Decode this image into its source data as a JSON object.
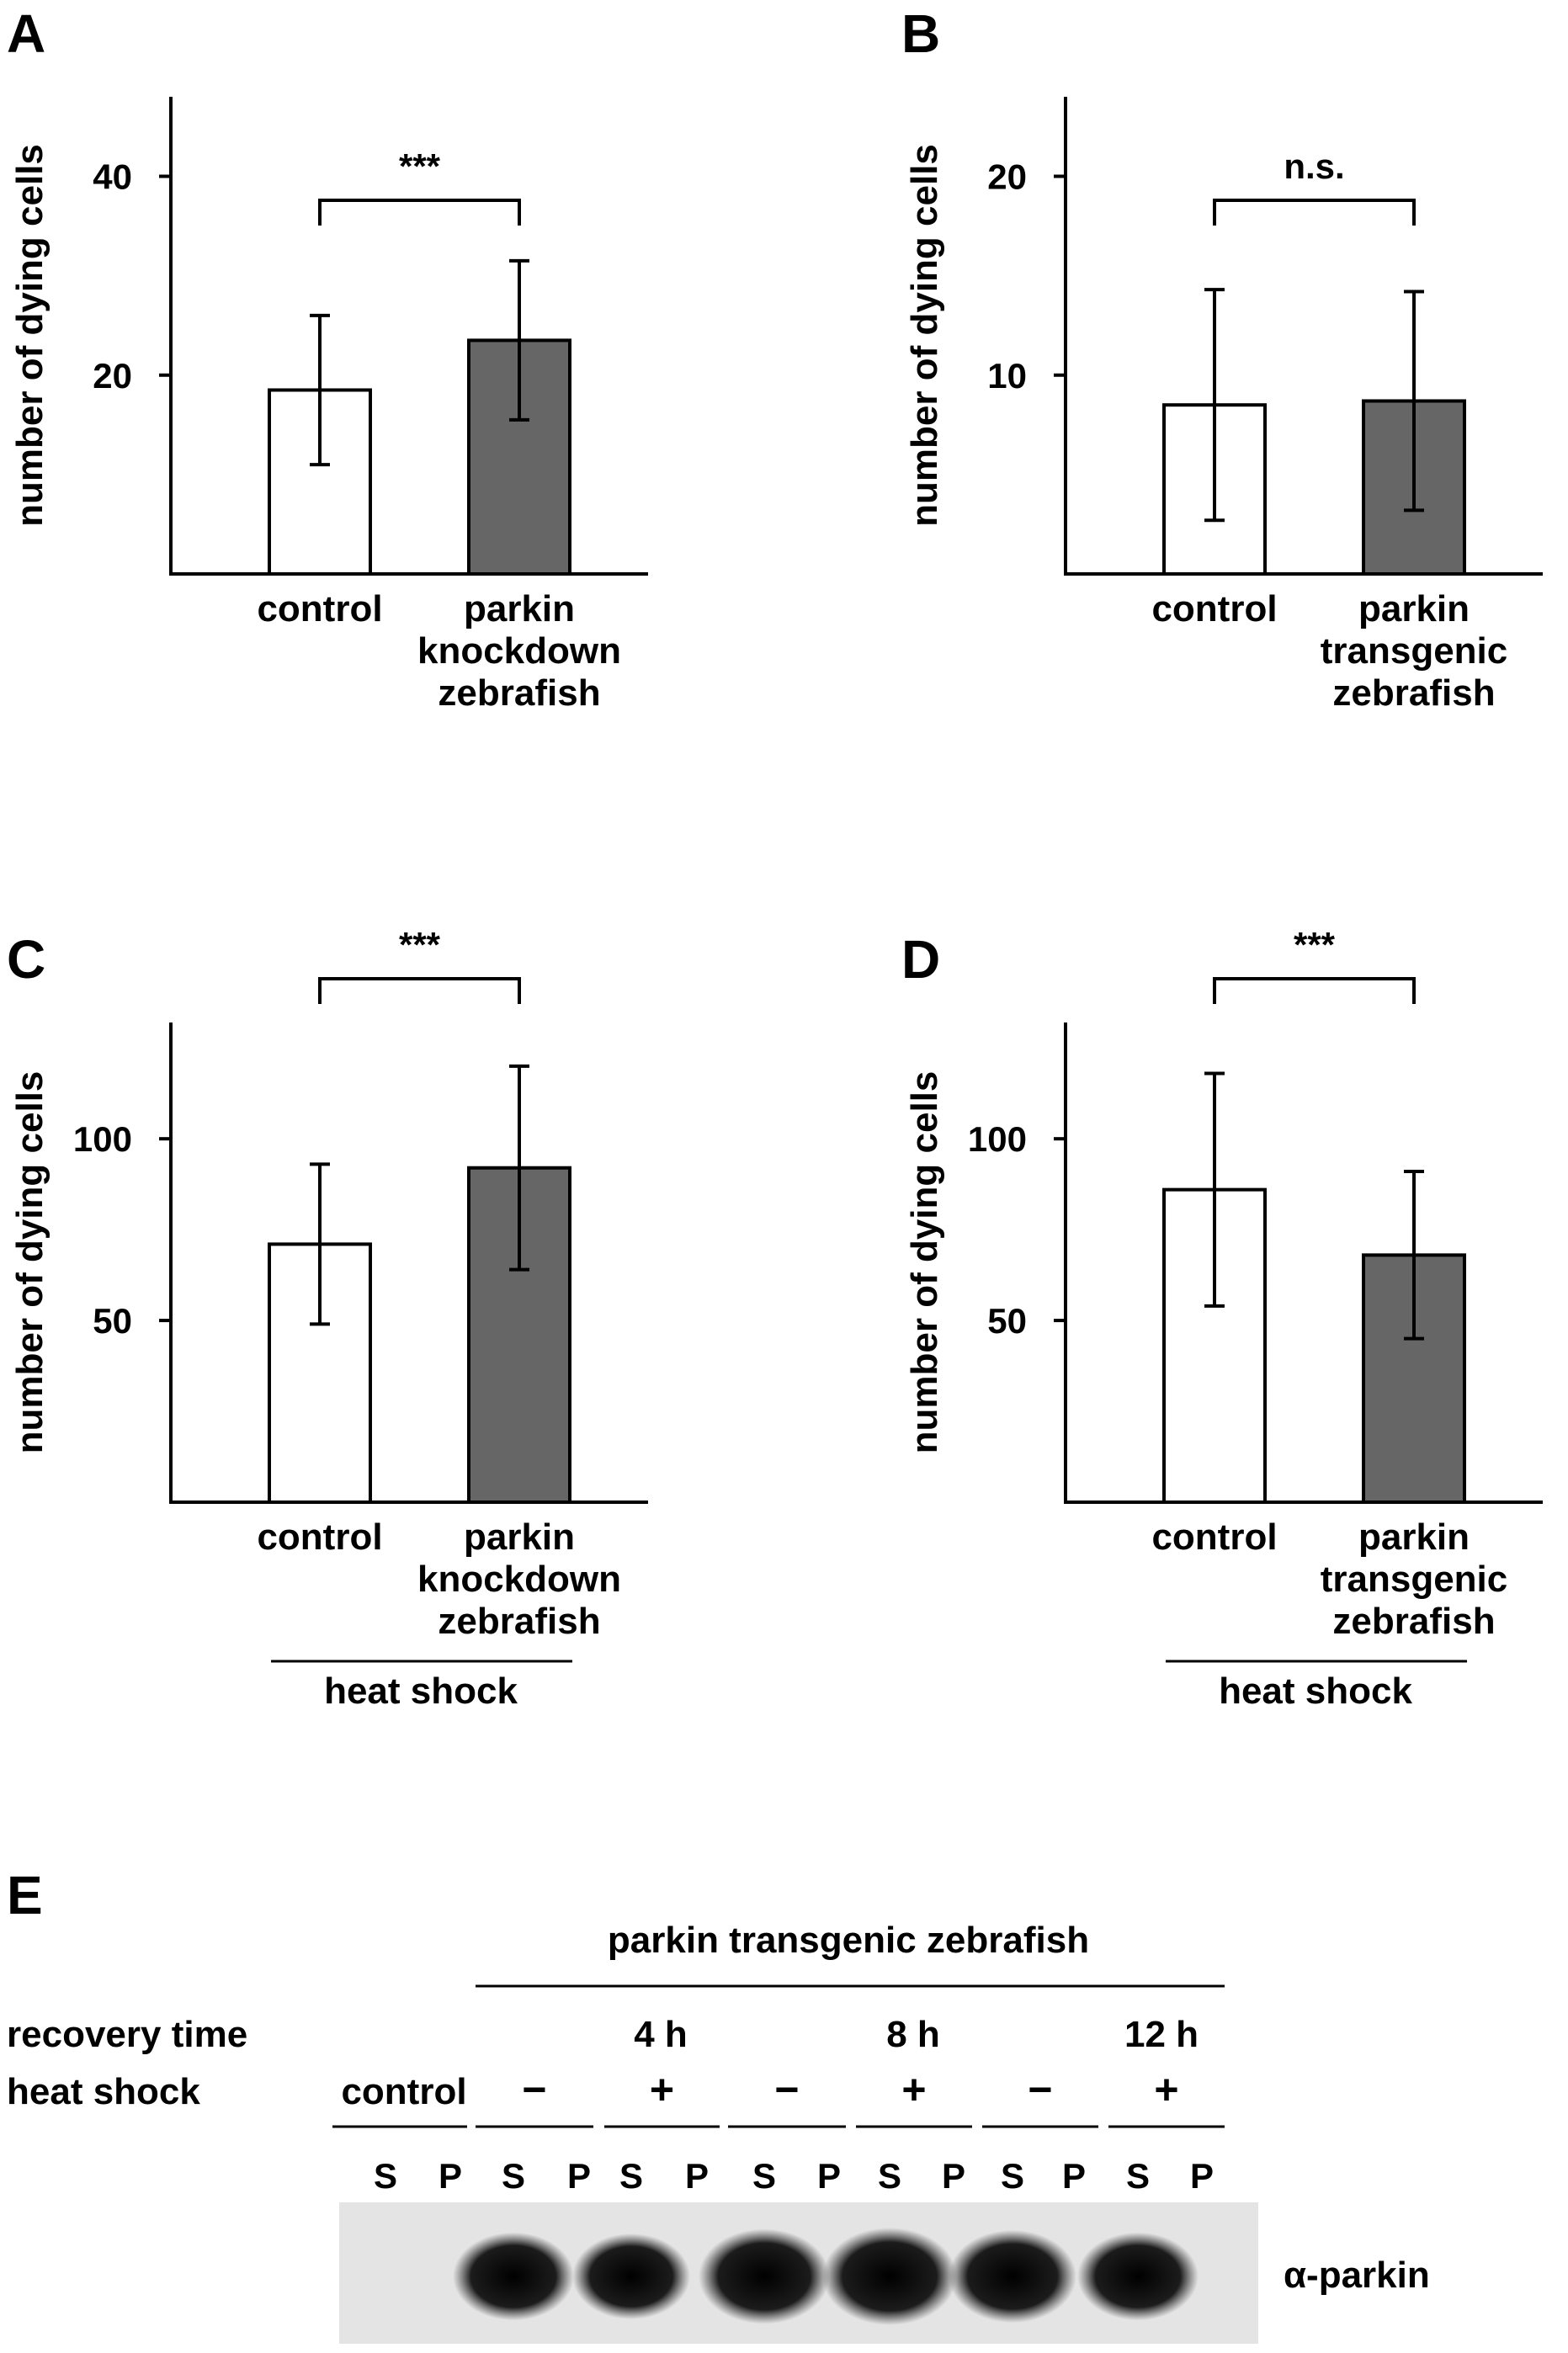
{
  "colors": {
    "control_fill": "#ffffff",
    "treated_fill": "#666666",
    "axis": "#000000",
    "blot_bg": "#e4e4e4",
    "band": "#0a0a0a"
  },
  "chart_data": [
    {
      "panel": "A",
      "type": "bar",
      "categories": [
        "control",
        "parkin knockdown zebrafish"
      ],
      "category_lines": [
        [
          "control"
        ],
        [
          "parkin",
          "knockdown",
          "zebrafish"
        ]
      ],
      "values": [
        18.5,
        23.5
      ],
      "error": [
        7.5,
        8.0
      ],
      "ylabel": "number of dying cells",
      "yticks": [
        "20",
        "40"
      ],
      "ylim": [
        0,
        48
      ],
      "significance": "***",
      "group_label": ""
    },
    {
      "panel": "B",
      "type": "bar",
      "categories": [
        "control",
        "parkin transgenic zebrafish"
      ],
      "category_lines": [
        [
          "control"
        ],
        [
          "parkin",
          "transgenic",
          "zebrafish"
        ]
      ],
      "values": [
        8.5,
        8.7
      ],
      "error": [
        5.8,
        5.5
      ],
      "ylabel": "number of dying cells",
      "yticks": [
        "10",
        "20"
      ],
      "ylim": [
        0,
        24
      ],
      "significance": "n.s.",
      "group_label": ""
    },
    {
      "panel": "C",
      "type": "bar",
      "categories": [
        "control",
        "parkin knockdown zebrafish"
      ],
      "category_lines": [
        [
          "control"
        ],
        [
          "parkin",
          "knockdown",
          "zebrafish"
        ]
      ],
      "values": [
        71,
        92
      ],
      "error": [
        22,
        28
      ],
      "ylabel": "number of dying cells",
      "yticks": [
        "50",
        "100"
      ],
      "ylim": [
        0,
        132
      ],
      "significance": "***",
      "group_label": "heat shock"
    },
    {
      "panel": "D",
      "type": "bar",
      "categories": [
        "control",
        "parkin transgenic zebrafish"
      ],
      "category_lines": [
        [
          "control"
        ],
        [
          "parkin",
          "transgenic",
          "zebrafish"
        ]
      ],
      "values": [
        86,
        68
      ],
      "error": [
        32,
        23
      ],
      "ylabel": "number of dying cells",
      "yticks": [
        "50",
        "100"
      ],
      "ylim": [
        0,
        132
      ],
      "significance": "***",
      "group_label": "heat shock"
    }
  ],
  "blot": {
    "panel": "E",
    "header": "parkin transgenic zebrafish",
    "row_recovery_label": "recovery time",
    "row_heat_label": "heat shock",
    "control_label": "control",
    "recovery_times": [
      "4 h",
      "8 h",
      "12 h"
    ],
    "heat_signs": [
      "−",
      "+",
      "−",
      "+",
      "−",
      "+"
    ],
    "lanes": [
      "S",
      "P",
      "S",
      "P",
      "S",
      "P",
      "S",
      "P",
      "S",
      "P",
      "S",
      "P",
      "S",
      "P"
    ],
    "band_intensity": [
      0,
      0,
      0.8,
      0,
      0.75,
      0,
      0.95,
      0,
      1.0,
      0,
      0.9,
      0,
      0.8,
      0
    ],
    "antibody": "α-parkin"
  }
}
